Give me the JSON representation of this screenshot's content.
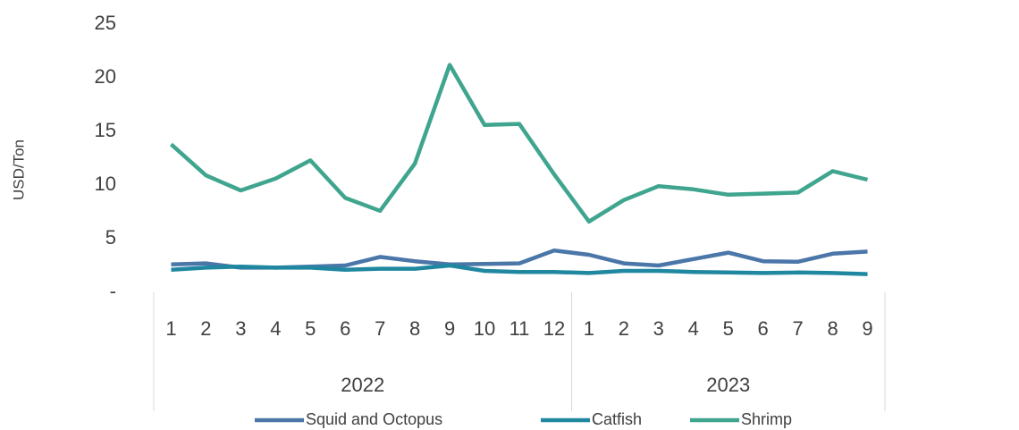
{
  "chart_data": {
    "type": "line",
    "y_label": "USD/Ton",
    "categories": [
      "1",
      "2",
      "3",
      "4",
      "5",
      "6",
      "7",
      "8",
      "9",
      "10",
      "11",
      "12",
      "1",
      "2",
      "3",
      "4",
      "5",
      "6",
      "7",
      "8",
      "9"
    ],
    "category_groups": [
      {
        "name": "2022",
        "size": 12
      },
      {
        "name": "2023",
        "size": 9
      }
    ],
    "series": [
      {
        "name": "Squid and Octopus",
        "color": "#4a76a8",
        "values": [
          2.6,
          2.7,
          2.3,
          2.3,
          2.4,
          2.5,
          3.3,
          2.9,
          2.6,
          2.65,
          2.7,
          3.9,
          3.5,
          2.7,
          2.5,
          3.1,
          3.7,
          2.9,
          2.85,
          3.6,
          3.8
        ]
      },
      {
        "name": "Catfish",
        "color": "#1f87a0",
        "values": [
          2.1,
          2.3,
          2.4,
          2.3,
          2.3,
          2.1,
          2.2,
          2.2,
          2.5,
          2.0,
          1.9,
          1.9,
          1.8,
          2.0,
          2.0,
          1.9,
          1.85,
          1.8,
          1.85,
          1.8,
          1.7
        ]
      },
      {
        "name": "Shrimp",
        "color": "#3fa58e",
        "values": [
          13.8,
          10.9,
          9.5,
          10.6,
          12.3,
          8.8,
          7.6,
          12.0,
          21.2,
          15.6,
          15.7,
          11.0,
          6.6,
          8.6,
          9.9,
          9.6,
          9.1,
          9.2,
          9.3,
          11.3,
          10.5
        ]
      }
    ],
    "ylim": [
      0,
      25
    ],
    "yticks": [
      {
        "value": 0,
        "label": "-"
      },
      5,
      10,
      15,
      20,
      25
    ],
    "legend": "bottom"
  }
}
